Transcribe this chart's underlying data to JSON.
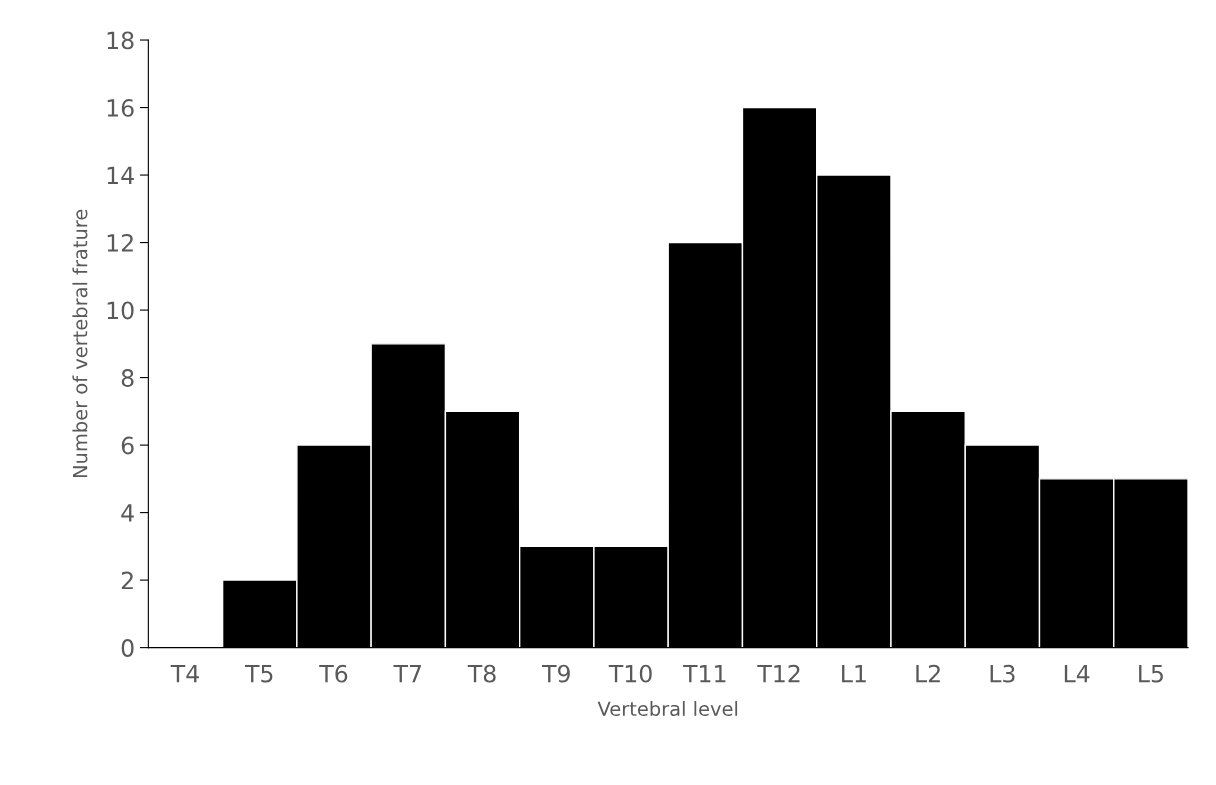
{
  "chart_data": {
    "type": "bar",
    "xlabel": "Vertebral level",
    "ylabel": "Number of vertebral frature",
    "categories": [
      "T4",
      "T5",
      "T6",
      "T7",
      "T8",
      "T9",
      "T10",
      "T11",
      "T12",
      "L1",
      "L2",
      "L3",
      "L4",
      "L5"
    ],
    "values": [
      0,
      2,
      6,
      9,
      7,
      3,
      3,
      12,
      16,
      14,
      7,
      6,
      5,
      5
    ],
    "color": "#000000",
    "ylim": [
      0,
      18
    ],
    "yticks": [
      0,
      2,
      4,
      6,
      8,
      10,
      12,
      14,
      16,
      18
    ],
    "grid": false
  }
}
